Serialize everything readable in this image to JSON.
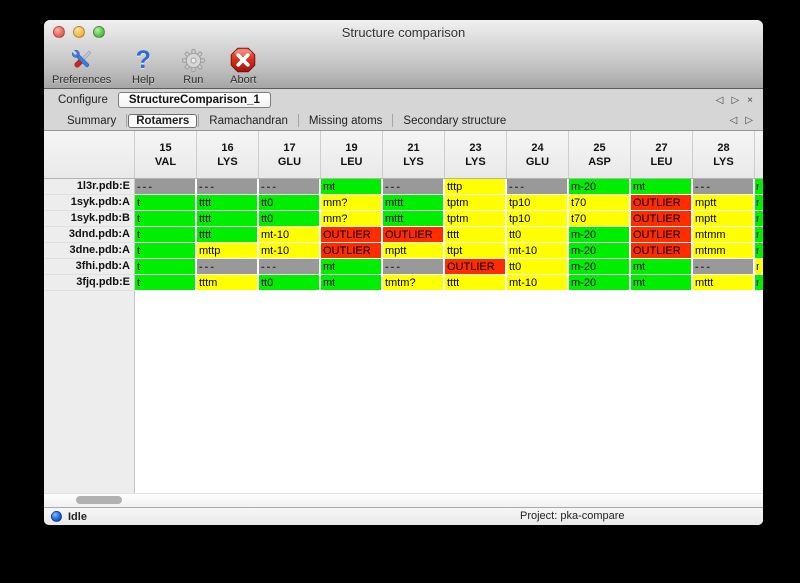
{
  "window": {
    "title": "Structure comparison"
  },
  "toolbar": {
    "items": [
      {
        "label": "Preferences",
        "icon": "tools-icon"
      },
      {
        "label": "Help",
        "icon": "question-icon"
      },
      {
        "label": "Run",
        "icon": "gear-icon"
      },
      {
        "label": "Abort",
        "icon": "abort-icon"
      }
    ]
  },
  "configure": {
    "label": "Configure",
    "value": "StructureComparison_1"
  },
  "nav": {
    "prev": "◁",
    "next": "▷",
    "close": "×"
  },
  "tabs": {
    "selected": "Rotamers",
    "items": [
      "Summary",
      "Rotamers",
      "Ramachandran",
      "Missing atoms",
      "Secondary structure"
    ]
  },
  "table": {
    "color_map": {
      "G": "#00ee00",
      "Y": "#ffff00",
      "R": "#ff2c00",
      "N": "#999999"
    },
    "columns": [
      [
        "15",
        "VAL"
      ],
      [
        "16",
        "LYS"
      ],
      [
        "17",
        "GLU"
      ],
      [
        "19",
        "LEU"
      ],
      [
        "21",
        "LYS"
      ],
      [
        "23",
        "LYS"
      ],
      [
        "24",
        "GLU"
      ],
      [
        "25",
        "ASP"
      ],
      [
        "27",
        "LEU"
      ],
      [
        "28",
        "LYS"
      ]
    ],
    "rows": [
      {
        "label": "1l3r.pdb:E",
        "cells": [
          [
            "N",
            "---"
          ],
          [
            "N",
            "---"
          ],
          [
            "N",
            "---"
          ],
          [
            "G",
            "mt"
          ],
          [
            "N",
            "---"
          ],
          [
            "Y",
            "tttp"
          ],
          [
            "N",
            "---"
          ],
          [
            "G",
            "m-20"
          ],
          [
            "G",
            "mt"
          ],
          [
            "N",
            "---"
          ]
        ],
        "partial": [
          "G",
          "m"
        ]
      },
      {
        "label": "1syk.pdb:A",
        "cells": [
          [
            "G",
            "t",
            "clip"
          ],
          [
            "G",
            "tttt"
          ],
          [
            "G",
            "tt0"
          ],
          [
            "Y",
            "mm?"
          ],
          [
            "G",
            "mttt"
          ],
          [
            "Y",
            "tptm"
          ],
          [
            "Y",
            "tp10"
          ],
          [
            "Y",
            "t70"
          ],
          [
            "R",
            "OUTLIER"
          ],
          [
            "Y",
            "mptt"
          ]
        ],
        "partial": [
          "G",
          "m"
        ]
      },
      {
        "label": "1syk.pdb:B",
        "cells": [
          [
            "G",
            "t",
            "clip"
          ],
          [
            "G",
            "tttt"
          ],
          [
            "G",
            "tt0"
          ],
          [
            "Y",
            "mm?"
          ],
          [
            "G",
            "mttt"
          ],
          [
            "Y",
            "tptm"
          ],
          [
            "Y",
            "tp10"
          ],
          [
            "Y",
            "t70"
          ],
          [
            "R",
            "OUTLIER"
          ],
          [
            "Y",
            "mptt"
          ]
        ],
        "partial": [
          "G",
          "m"
        ]
      },
      {
        "label": "3dnd.pdb:A",
        "cells": [
          [
            "G",
            "t",
            "clip"
          ],
          [
            "G",
            "tttt"
          ],
          [
            "Y",
            "mt-10"
          ],
          [
            "R",
            "OUTLIER"
          ],
          [
            "R",
            "OUTLIER"
          ],
          [
            "Y",
            "tttt"
          ],
          [
            "Y",
            "tt0"
          ],
          [
            "G",
            "m-20"
          ],
          [
            "R",
            "OUTLIER"
          ],
          [
            "Y",
            "mtmm"
          ]
        ],
        "partial": [
          "G",
          "m"
        ]
      },
      {
        "label": "3dne.pdb:A",
        "cells": [
          [
            "G",
            "t",
            "clip"
          ],
          [
            "Y",
            "mttp"
          ],
          [
            "Y",
            "mt-10"
          ],
          [
            "R",
            "OUTLIER"
          ],
          [
            "Y",
            "mptt"
          ],
          [
            "Y",
            "ttpt"
          ],
          [
            "Y",
            "mt-10"
          ],
          [
            "G",
            "m-20"
          ],
          [
            "R",
            "OUTLIER"
          ],
          [
            "Y",
            "mtmm"
          ]
        ],
        "partial": [
          "G",
          "m"
        ]
      },
      {
        "label": "3fhi.pdb:A",
        "cells": [
          [
            "G",
            "t",
            "clip"
          ],
          [
            "N",
            "---"
          ],
          [
            "N",
            "---"
          ],
          [
            "G",
            "mt"
          ],
          [
            "N",
            "---"
          ],
          [
            "R",
            "OUTLIER"
          ],
          [
            "Y",
            "tt0"
          ],
          [
            "G",
            "m-20"
          ],
          [
            "G",
            "mt"
          ],
          [
            "N",
            "---"
          ]
        ],
        "partial": [
          "Y",
          "m"
        ]
      },
      {
        "label": "3fjq.pdb:E",
        "cells": [
          [
            "G",
            "t",
            "clip"
          ],
          [
            "Y",
            "tttm"
          ],
          [
            "G",
            "tt0"
          ],
          [
            "G",
            "mt"
          ],
          [
            "Y",
            "tmtm?"
          ],
          [
            "Y",
            "tttt"
          ],
          [
            "Y",
            "mt-10"
          ],
          [
            "G",
            "m-20"
          ],
          [
            "G",
            "mt"
          ],
          [
            "Y",
            "mttt"
          ]
        ],
        "partial": [
          "G",
          "m"
        ]
      }
    ]
  },
  "statusbar": {
    "status": "Idle",
    "project": "Project: pka-compare"
  }
}
